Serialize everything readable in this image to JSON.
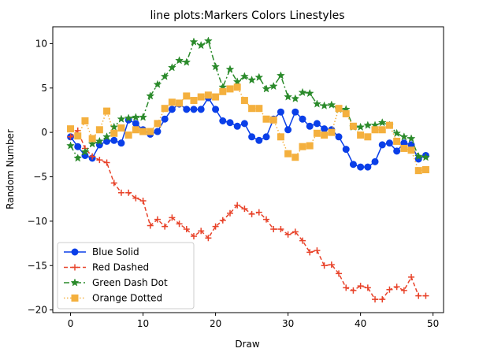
{
  "chart_data": {
    "type": "line",
    "title": "line plots:Markers Colors Linestyles",
    "xlabel": "Draw",
    "ylabel": "Random Number",
    "xlim": [
      -2.45,
      51.45
    ],
    "ylim": [
      -20.3,
      11.9
    ],
    "xticks": [
      0,
      10,
      20,
      30,
      40,
      50
    ],
    "yticks": [
      -20,
      -15,
      -10,
      -5,
      0,
      5,
      10
    ],
    "grid": false,
    "legend_position": "lower-left",
    "series": [
      {
        "name": "Blue Solid",
        "color": "#0a3fe8",
        "linestyle": "solid",
        "marker": "circle",
        "x": [
          0,
          1,
          2,
          3,
          4,
          5,
          6,
          7,
          8,
          9,
          10,
          11,
          12,
          13,
          14,
          15,
          16,
          17,
          18,
          19,
          20,
          21,
          22,
          23,
          24,
          25,
          26,
          27,
          28,
          29,
          30,
          31,
          32,
          33,
          34,
          35,
          36,
          37,
          38,
          39,
          40,
          41,
          42,
          43,
          44,
          45,
          46,
          47,
          48,
          49
        ],
        "values": [
          -0.5,
          -1.6,
          -2.6,
          -2.9,
          -1.4,
          -1.0,
          -0.9,
          -1.2,
          1.4,
          1.0,
          0.3,
          -0.2,
          0.1,
          1.5,
          2.6,
          3.2,
          2.6,
          2.6,
          2.6,
          3.9,
          2.6,
          1.3,
          1.1,
          0.7,
          1.0,
          -0.5,
          -0.9,
          -0.5,
          1.5,
          2.3,
          0.3,
          2.3,
          1.5,
          0.7,
          1.0,
          0.4,
          0.3,
          -0.5,
          -1.9,
          -3.6,
          -3.9,
          -3.9,
          -3.3,
          -1.4,
          -1.2,
          -2.1,
          -1.2,
          -1.4,
          -3.0,
          -2.6
        ]
      },
      {
        "name": "Red Dashed",
        "color": "#e8432a",
        "linestyle": "dashed",
        "marker": "plus",
        "x": [
          0,
          1,
          2,
          3,
          4,
          5,
          6,
          7,
          8,
          9,
          10,
          11,
          12,
          13,
          14,
          15,
          16,
          17,
          18,
          19,
          20,
          21,
          22,
          23,
          24,
          25,
          26,
          27,
          28,
          29,
          30,
          31,
          32,
          33,
          34,
          35,
          36,
          37,
          38,
          39,
          40,
          41,
          42,
          43,
          44,
          45,
          46,
          47,
          48,
          49
        ],
        "values": [
          -0.5,
          0.2,
          -1.8,
          -2.7,
          -3.1,
          -3.4,
          -5.7,
          -6.8,
          -6.8,
          -7.4,
          -7.7,
          -10.5,
          -9.8,
          -10.6,
          -9.6,
          -10.3,
          -10.9,
          -11.7,
          -11.1,
          -11.9,
          -10.6,
          -9.9,
          -9.1,
          -8.2,
          -8.6,
          -9.2,
          -9.0,
          -9.8,
          -10.9,
          -10.9,
          -11.5,
          -11.2,
          -12.2,
          -13.5,
          -13.3,
          -15.0,
          -14.9,
          -15.9,
          -17.5,
          -17.8,
          -17.3,
          -17.5,
          -18.8,
          -18.8,
          -17.7,
          -17.4,
          -17.8,
          -16.3,
          -18.4,
          -18.4
        ]
      },
      {
        "name": "Green Dash Dot",
        "color": "#2a8a2a",
        "linestyle": "dashdot",
        "marker": "star",
        "x": [
          0,
          1,
          2,
          3,
          4,
          5,
          6,
          7,
          8,
          9,
          10,
          11,
          12,
          13,
          14,
          15,
          16,
          17,
          18,
          19,
          20,
          21,
          22,
          23,
          24,
          25,
          26,
          27,
          28,
          29,
          30,
          31,
          32,
          33,
          34,
          35,
          36,
          37,
          38,
          39,
          40,
          41,
          42,
          43,
          44,
          45,
          46,
          47,
          48,
          49
        ],
        "values": [
          -1.5,
          -2.9,
          -2.2,
          -1.3,
          -1.0,
          -0.5,
          0.6,
          1.5,
          1.6,
          1.7,
          1.7,
          4.1,
          5.4,
          6.3,
          7.3,
          8.1,
          7.9,
          10.2,
          9.8,
          10.3,
          7.4,
          5.1,
          7.1,
          5.7,
          6.3,
          5.9,
          6.2,
          4.9,
          5.2,
          6.4,
          4.0,
          3.8,
          4.5,
          4.4,
          3.2,
          3.0,
          3.1,
          2.6,
          2.6,
          0.6,
          0.6,
          0.8,
          0.8,
          1.1,
          0.8,
          -0.1,
          -0.5,
          -0.7,
          -2.7,
          -2.8
        ]
      },
      {
        "name": "Orange Dotted",
        "color": "#f4b03e",
        "linestyle": "dotted",
        "marker": "square",
        "x": [
          0,
          1,
          2,
          3,
          4,
          5,
          6,
          7,
          8,
          9,
          10,
          11,
          12,
          13,
          14,
          15,
          16,
          17,
          18,
          19,
          20,
          21,
          22,
          23,
          24,
          25,
          26,
          27,
          28,
          29,
          30,
          31,
          32,
          33,
          34,
          35,
          36,
          37,
          38,
          39,
          40,
          41,
          42,
          43,
          44,
          45,
          46,
          47,
          48,
          49
        ],
        "values": [
          0.4,
          -0.4,
          1.3,
          -0.7,
          0.3,
          2.4,
          -0.1,
          0.5,
          -0.3,
          0.3,
          0.1,
          0.1,
          1.0,
          2.7,
          3.4,
          3.3,
          4.1,
          3.6,
          4.0,
          4.2,
          4.0,
          4.6,
          4.9,
          5.1,
          3.6,
          2.7,
          2.7,
          1.5,
          1.4,
          -0.5,
          -2.4,
          -2.8,
          -1.6,
          -1.5,
          -0.1,
          -0.3,
          0.0,
          2.7,
          2.1,
          0.7,
          -0.3,
          -0.5,
          0.3,
          0.3,
          0.8,
          -1.0,
          -1.8,
          -2.0,
          -4.3,
          -4.2
        ]
      }
    ]
  }
}
